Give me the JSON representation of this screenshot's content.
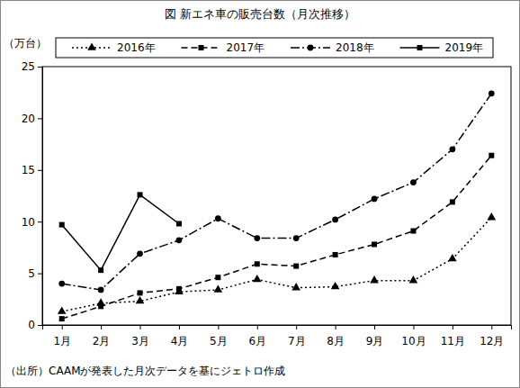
{
  "chart_data": {
    "type": "line",
    "title": "図 新エネ車の販売台数（月次推移）",
    "y_label": "（万台）",
    "note": "（出所）CAAMが発表した月次データを基にジェトロ作成",
    "categories": [
      "1月",
      "2月",
      "3月",
      "4月",
      "5月",
      "6月",
      "7月",
      "8月",
      "9月",
      "10月",
      "11月",
      "12月"
    ],
    "ylim": [
      0,
      25
    ],
    "yticks": [
      0,
      5,
      10,
      15,
      20,
      25
    ],
    "grid": false,
    "legend": "top",
    "series": [
      {
        "name": "2016年",
        "color": "#000000",
        "marker": "triangle",
        "line_style": "dotted",
        "values": [
          1.3,
          2.1,
          2.3,
          3.2,
          3.4,
          4.4,
          3.6,
          3.7,
          4.3,
          4.3,
          6.4,
          10.4
        ]
      },
      {
        "name": "2017年",
        "color": "#000000",
        "marker": "square",
        "line_style": "dashed",
        "values": [
          0.6,
          1.8,
          3.1,
          3.5,
          4.6,
          5.9,
          5.7,
          6.8,
          7.8,
          9.1,
          11.9,
          16.4
        ]
      },
      {
        "name": "2018年",
        "color": "#000000",
        "marker": "circle",
        "line_style": "dashdot",
        "values": [
          4.0,
          3.4,
          6.9,
          8.2,
          10.3,
          8.4,
          8.4,
          10.2,
          12.2,
          13.8,
          17.0,
          22.4
        ]
      },
      {
        "name": "2019年",
        "color": "#000000",
        "marker": "square",
        "line_style": "solid",
        "values": [
          9.7,
          5.3,
          12.6,
          9.8,
          null,
          null,
          null,
          null,
          null,
          null,
          null,
          null
        ]
      }
    ]
  }
}
